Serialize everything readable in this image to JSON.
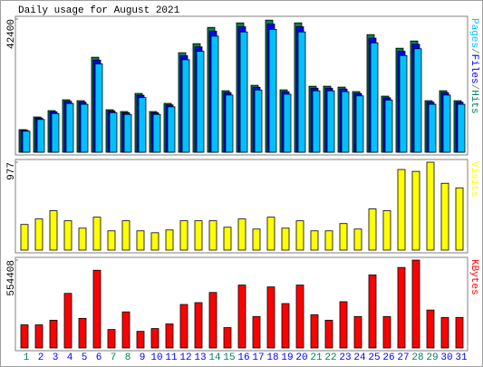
{
  "chart_data": [
    {
      "type": "bar",
      "title": "Daily usage for August 2021",
      "ylim": [
        0,
        42400
      ],
      "yticks": [
        42400
      ],
      "legend_separator": "/",
      "series": [
        {
          "name": "Hits",
          "color": "#00805c",
          "values": [
            7200,
            11230,
            13250,
            16700,
            16420,
            30240,
            13540,
            12960,
            18720,
            12960,
            15550,
            31680,
            34560,
            39740,
            19580,
            41180,
            21310,
            42050,
            19870,
            41180,
            21020,
            21020,
            20740,
            19300,
            37440,
            17860,
            33120,
            35420,
            16420,
            19580,
            16420
          ]
        },
        {
          "name": "Files",
          "color": "#0000ff",
          "values": [
            6980,
            10890,
            12850,
            16200,
            15930,
            29330,
            13130,
            12570,
            18160,
            12570,
            15080,
            30730,
            33520,
            38550,
            18990,
            39940,
            20670,
            40790,
            19270,
            39940,
            20390,
            20390,
            20120,
            18720,
            36320,
            17320,
            32130,
            34360,
            15930,
            18990,
            15930
          ]
        },
        {
          "name": "Pages",
          "color": "#00c0ff",
          "values": [
            6700,
            10440,
            12320,
            15530,
            15270,
            28120,
            12590,
            12050,
            17410,
            12050,
            14460,
            29460,
            32140,
            36960,
            18210,
            38300,
            19820,
            39110,
            18480,
            38300,
            19550,
            19550,
            19290,
            17950,
            34820,
            16610,
            30800,
            32940,
            15270,
            18210,
            15270
          ]
        }
      ]
    },
    {
      "type": "bar",
      "ylim": [
        0,
        977
      ],
      "yticks": [
        977
      ],
      "series": [
        {
          "name": "Visits",
          "color": "#ffff00",
          "values": [
            285,
            346,
            438,
            326,
            244,
            366,
            214,
            326,
            214,
            193,
            224,
            326,
            326,
            326,
            254,
            346,
            234,
            366,
            244,
            326,
            214,
            214,
            295,
            234,
            458,
            438,
            896,
            875,
            977,
            743,
            692
          ]
        }
      ]
    },
    {
      "type": "bar",
      "ylim": [
        0,
        554408
      ],
      "yticks": [
        554408
      ],
      "categories": [
        "1",
        "2",
        "3",
        "4",
        "5",
        "6",
        "7",
        "8",
        "9",
        "10",
        "11",
        "12",
        "13",
        "14",
        "15",
        "16",
        "17",
        "18",
        "19",
        "20",
        "21",
        "22",
        "23",
        "24",
        "25",
        "26",
        "27",
        "28",
        "29",
        "30",
        "31"
      ],
      "category_colors": [
        "#00805c",
        "#0000ff",
        "#0000ff",
        "#0000ff",
        "#0000ff",
        "#0000ff",
        "#00805c",
        "#00805c",
        "#0000ff",
        "#0000ff",
        "#0000ff",
        "#0000ff",
        "#0000ff",
        "#00805c",
        "#00805c",
        "#0000ff",
        "#0000ff",
        "#0000ff",
        "#0000ff",
        "#0000ff",
        "#00805c",
        "#00805c",
        "#0000ff",
        "#0000ff",
        "#0000ff",
        "#0000ff",
        "#0000ff",
        "#00805c",
        "#00805c",
        "#0000ff",
        "#0000ff"
      ],
      "series": [
        {
          "name": "KBytes",
          "color": "#ff0000",
          "values": [
            145900,
            145900,
            175080,
            344320,
            186750,
            490220,
            116720,
            227600,
            105050,
            122560,
            151740,
            274290,
            285960,
            350160,
            128390,
            396850,
            198420,
            385180,
            280130,
            396850,
            210100,
            175080,
            291800,
            198420,
            461040,
            198420,
            507730,
            554408,
            239280,
            192590,
            192590
          ]
        }
      ]
    }
  ]
}
